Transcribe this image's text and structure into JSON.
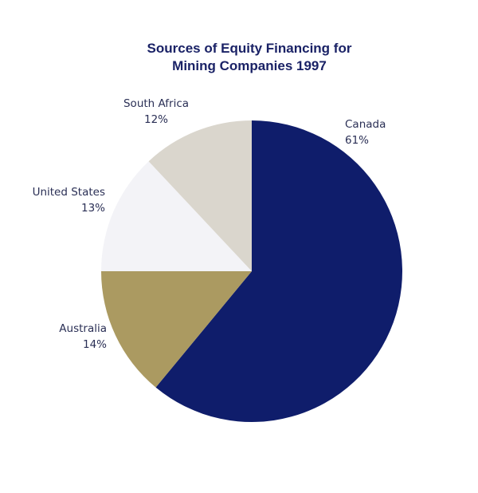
{
  "chart_data": {
    "type": "pie",
    "title_line1": "Sources of Equity Financing for",
    "title_line2": "Mining Companies 1997",
    "slices": [
      {
        "label": "Canada",
        "value": 61,
        "value_label": "61%",
        "color": "#0f1d6b"
      },
      {
        "label": "Australia",
        "value": 14,
        "value_label": "14%",
        "color": "#ab9a61"
      },
      {
        "label": "United States",
        "value": 13,
        "value_label": "13%",
        "color": "#f3f3f7"
      },
      {
        "label": "South Africa",
        "value": 12,
        "value_label": "12%",
        "color": "#dad6cd"
      }
    ],
    "start": "12 o'clock",
    "direction": "clockwise",
    "legend": "none"
  }
}
